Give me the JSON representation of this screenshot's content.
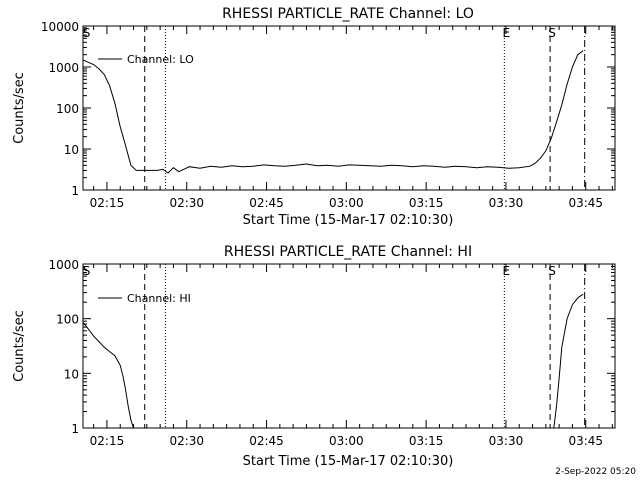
{
  "footer": {
    "date_stamp": "2-Sep-2022 05:20"
  },
  "chart_data": [
    {
      "type": "line",
      "title": "RHESSI PARTICLE_RATE Channel: LO",
      "xlabel": "Start Time (15-Mar-17 02:10:30)",
      "ylabel": "Counts/sec",
      "x_unit": "minutes after 02:10:30",
      "xlim": [
        0,
        100
      ],
      "ylim": [
        1,
        10000
      ],
      "yscale": "log",
      "xticks": [
        {
          "x": 4.5,
          "label": "02:15"
        },
        {
          "x": 19.5,
          "label": "02:30"
        },
        {
          "x": 34.5,
          "label": "02:45"
        },
        {
          "x": 49.5,
          "label": "03:00"
        },
        {
          "x": 64.5,
          "label": "03:15"
        },
        {
          "x": 79.5,
          "label": "03:30"
        },
        {
          "x": 94.5,
          "label": "03:45"
        }
      ],
      "yticks": [
        {
          "y": 1,
          "label": "1"
        },
        {
          "y": 10,
          "label": "10"
        },
        {
          "y": 100,
          "label": "100"
        },
        {
          "y": 1000,
          "label": "1000"
        },
        {
          "y": 10000,
          "label": "10000"
        }
      ],
      "legend": {
        "label": "Channel: LO",
        "position": "top-left"
      },
      "markers": [
        {
          "x": 0.3,
          "style": "none",
          "label": "S"
        },
        {
          "x": 11.6,
          "style": "dashed",
          "label": ""
        },
        {
          "x": 15.5,
          "style": "dotted",
          "label": ""
        },
        {
          "x": 79.2,
          "style": "dotted",
          "label": "E"
        },
        {
          "x": 87.8,
          "style": "dashed",
          "label": "S"
        },
        {
          "x": 94.3,
          "style": "dashdot",
          "label": ""
        }
      ],
      "series": [
        {
          "name": "Channel: LO",
          "x": [
            0,
            1,
            2,
            3,
            4,
            5,
            6,
            7,
            8,
            9,
            10,
            11,
            12,
            13,
            14,
            15,
            16,
            17,
            18,
            20,
            22,
            24,
            26,
            28,
            30,
            32,
            34,
            36,
            38,
            40,
            42,
            44,
            46,
            48,
            50,
            52,
            54,
            56,
            58,
            60,
            62,
            64,
            66,
            68,
            70,
            72,
            74,
            76,
            78,
            80,
            82,
            84,
            85,
            86,
            87,
            88,
            89,
            90,
            91,
            92,
            93,
            94
          ],
          "y": [
            1500,
            1300,
            1150,
            900,
            650,
            350,
            130,
            35,
            12,
            4,
            3,
            3,
            3,
            3,
            3,
            3.2,
            2.6,
            3.5,
            2.8,
            3.7,
            3.4,
            3.8,
            3.6,
            3.9,
            3.7,
            3.8,
            4.1,
            3.9,
            3.8,
            4.0,
            4.3,
            3.9,
            4.0,
            3.8,
            4.1,
            4.0,
            3.9,
            3.8,
            4.0,
            3.9,
            3.7,
            3.9,
            3.8,
            3.6,
            3.8,
            3.7,
            3.5,
            3.7,
            3.6,
            3.4,
            3.5,
            3.8,
            4.5,
            6,
            9,
            18,
            45,
            120,
            380,
            1000,
            2000,
            2500
          ]
        }
      ]
    },
    {
      "type": "line",
      "title": "RHESSI PARTICLE_RATE Channel: HI",
      "xlabel": "Start Time (15-Mar-17 02:10:30)",
      "ylabel": "Counts/sec",
      "x_unit": "minutes after 02:10:30",
      "xlim": [
        0,
        100
      ],
      "ylim": [
        1,
        1000
      ],
      "yscale": "log",
      "xticks": [
        {
          "x": 4.5,
          "label": "02:15"
        },
        {
          "x": 19.5,
          "label": "02:30"
        },
        {
          "x": 34.5,
          "label": "02:45"
        },
        {
          "x": 49.5,
          "label": "03:00"
        },
        {
          "x": 64.5,
          "label": "03:15"
        },
        {
          "x": 79.5,
          "label": "03:30"
        },
        {
          "x": 94.5,
          "label": "03:45"
        }
      ],
      "yticks": [
        {
          "y": 1,
          "label": "1"
        },
        {
          "y": 10,
          "label": "10"
        },
        {
          "y": 100,
          "label": "100"
        },
        {
          "y": 1000,
          "label": "1000"
        }
      ],
      "legend": {
        "label": "Channel: HI",
        "position": "top-left"
      },
      "markers": [
        {
          "x": 0.3,
          "style": "none",
          "label": "S"
        },
        {
          "x": 11.6,
          "style": "dashed",
          "label": ""
        },
        {
          "x": 15.5,
          "style": "dotted",
          "label": ""
        },
        {
          "x": 79.2,
          "style": "dotted",
          "label": "E"
        },
        {
          "x": 87.8,
          "style": "dashed",
          "label": "S"
        },
        {
          "x": 94.3,
          "style": "dashdot",
          "label": ""
        }
      ],
      "series": [
        {
          "name": "Channel: HI",
          "x": [
            0,
            1,
            2,
            3,
            4,
            5,
            6,
            7,
            7.5,
            8,
            8.5,
            9,
            9.5,
            88.5,
            89,
            89.5,
            90,
            91,
            92,
            93,
            94
          ],
          "y": [
            85,
            65,
            48,
            38,
            30,
            25,
            21,
            14,
            9,
            5,
            2.5,
            1.4,
            1,
            1,
            2.5,
            8,
            30,
            100,
            180,
            240,
            280
          ]
        }
      ]
    }
  ]
}
